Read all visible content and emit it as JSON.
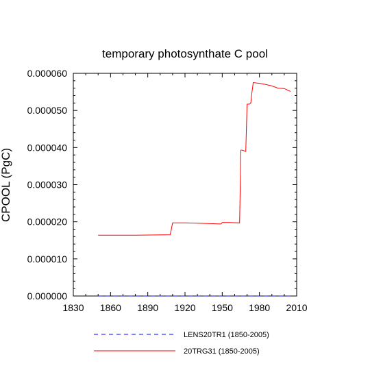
{
  "chart_data": {
    "type": "line",
    "title": "temporary photosynthate C pool",
    "xlabel": "",
    "ylabel": "CPOOL  (PgC)",
    "xlim": [
      1830,
      2010
    ],
    "ylim": [
      0.0,
      6e-05
    ],
    "xticks": [
      1830,
      1860,
      1890,
      1920,
      1950,
      1980,
      2010
    ],
    "xtick_labels": [
      "1830",
      "1860",
      "1890",
      "1920",
      "1950",
      "1980",
      "2010"
    ],
    "yticks": [
      0.0,
      1e-05,
      2e-05,
      3e-05,
      4e-05,
      5e-05,
      6e-05
    ],
    "ytick_labels": [
      "0.000000",
      "0.000010",
      "0.000020",
      "0.000030",
      "0.000040",
      "0.000050",
      "0.000060"
    ],
    "grid": false,
    "legend_position": "bottom",
    "series": [
      {
        "name": "LENS20TR1 (1850-2005)",
        "color": "#0000ff",
        "dash": "dashed",
        "x": [
          1850,
          2005
        ],
        "y": [
          0.0,
          0.0
        ]
      },
      {
        "name": "20TRG31 (1850-2005)",
        "color": "#ff0000",
        "dash": "solid",
        "x": [
          1850,
          1870,
          1880,
          1908,
          1909,
          1910,
          1920,
          1930,
          1940,
          1949,
          1950,
          1955,
          1964,
          1965,
          1966,
          1969,
          1970,
          1972,
          1973,
          1974,
          1975,
          1980,
          1985,
          1990,
          1995,
          2000,
          2005
        ],
        "y": [
          1.64e-05,
          1.64e-05,
          1.64e-05,
          1.65e-05,
          1.8e-05,
          1.97e-05,
          1.97e-05,
          1.96e-05,
          1.95e-05,
          1.94e-05,
          1.98e-05,
          1.98e-05,
          1.97e-05,
          3.93e-05,
          3.93e-05,
          3.9e-05,
          5.17e-05,
          5.17e-05,
          5.2e-05,
          5.5e-05,
          5.75e-05,
          5.73e-05,
          5.7e-05,
          5.66e-05,
          5.6e-05,
          5.59e-05,
          5.51e-05
        ]
      }
    ]
  }
}
